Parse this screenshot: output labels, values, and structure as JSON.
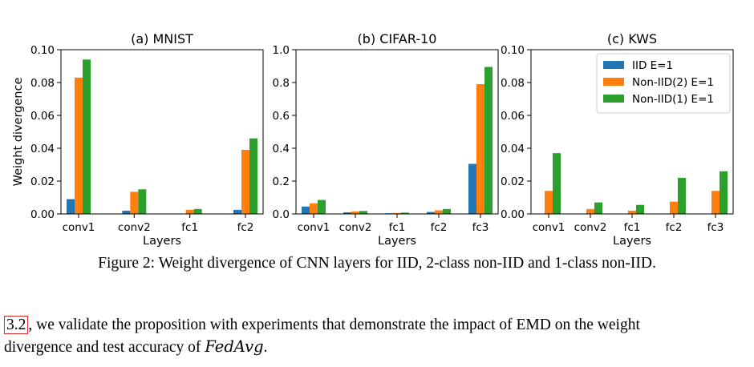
{
  "figure": {
    "ylabel": "Weight divergence",
    "xlabel": "Layers",
    "colors": {
      "IID E=1": "#1f77b4",
      "Non-IID(2) E=1": "#ff7f0e",
      "Non-IID(1) E=1": "#2ca02c"
    },
    "legend": [
      "IID E=1",
      "Non-IID(2) E=1",
      "Non-IID(1) E=1"
    ]
  },
  "chart_data": [
    {
      "type": "bar",
      "title": "(a) MNIST",
      "xlabel": "Layers",
      "ylabel": "Weight divergence",
      "ylim": [
        0,
        0.1
      ],
      "yticks": [
        "0.00",
        "0.02",
        "0.04",
        "0.06",
        "0.08",
        "0.10"
      ],
      "categories": [
        "conv1",
        "conv2",
        "fc1",
        "fc2"
      ],
      "series": [
        {
          "name": "IID E=1",
          "values": [
            0.009,
            0.002,
            0.0,
            0.0025
          ]
        },
        {
          "name": "Non-IID(2) E=1",
          "values": [
            0.083,
            0.0135,
            0.0025,
            0.039
          ]
        },
        {
          "name": "Non-IID(1) E=1",
          "values": [
            0.094,
            0.015,
            0.003,
            0.046
          ]
        }
      ]
    },
    {
      "type": "bar",
      "title": "(b) CIFAR-10",
      "xlabel": "Layers",
      "ylabel": "",
      "ylim": [
        0,
        1.0
      ],
      "yticks": [
        "0.0",
        "0.2",
        "0.4",
        "0.6",
        "0.8",
        "1.0"
      ],
      "categories": [
        "conv1",
        "conv2",
        "fc1",
        "fc2",
        "fc3"
      ],
      "series": [
        {
          "name": "IID E=1",
          "values": [
            0.045,
            0.01,
            0.004,
            0.012,
            0.305
          ]
        },
        {
          "name": "Non-IID(2) E=1",
          "values": [
            0.065,
            0.015,
            0.006,
            0.022,
            0.79
          ]
        },
        {
          "name": "Non-IID(1) E=1",
          "values": [
            0.085,
            0.018,
            0.008,
            0.03,
            0.895
          ]
        }
      ]
    },
    {
      "type": "bar",
      "title": "(c) KWS",
      "xlabel": "Layers",
      "ylabel": "",
      "ylim": [
        0,
        0.1
      ],
      "yticks": [
        "0.00",
        "0.02",
        "0.04",
        "0.06",
        "0.08",
        "0.10"
      ],
      "categories": [
        "conv1",
        "conv2",
        "fc1",
        "fc2",
        "fc3"
      ],
      "legend_position": "upper right",
      "series": [
        {
          "name": "IID E=1",
          "values": [
            0.0,
            0.0,
            0.0,
            0.0,
            0.0
          ]
        },
        {
          "name": "Non-IID(2) E=1",
          "values": [
            0.014,
            0.003,
            0.002,
            0.0075,
            0.014
          ]
        },
        {
          "name": "Non-IID(1) E=1",
          "values": [
            0.037,
            0.007,
            0.0055,
            0.022,
            0.026
          ]
        }
      ]
    }
  ],
  "caption": "Figure 2: Weight divergence of CNN layers for IID, 2-class non-IID and 1-class non-IID.",
  "body": {
    "ref": "3.2",
    "line1_rest": ", we validate the proposition with experiments that demonstrate the impact of EMD on the weight",
    "line2_prefix": "divergence and test accuracy of ",
    "math": "FedAvg",
    "line2_suffix": "."
  }
}
